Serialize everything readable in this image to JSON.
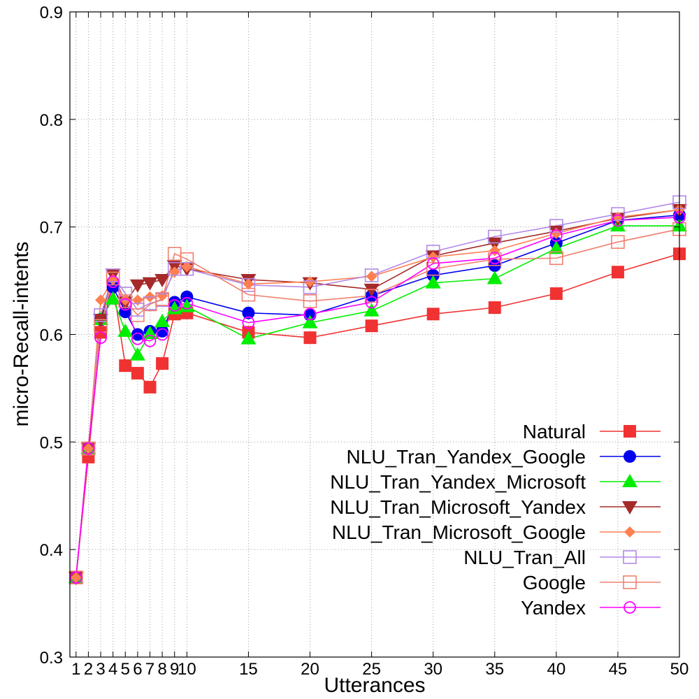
{
  "chart_data": {
    "type": "line",
    "xlabel": "Utterances",
    "ylabel": "micro-Recall-intents",
    "xlim": [
      0.5,
      50
    ],
    "ylim": [
      0.3,
      0.9
    ],
    "x": [
      1,
      2,
      3,
      4,
      5,
      6,
      7,
      8,
      9,
      10,
      15,
      20,
      25,
      30,
      35,
      40,
      45,
      50
    ],
    "x_ticks": [
      1,
      2,
      3,
      4,
      5,
      6,
      7,
      8,
      9,
      10,
      15,
      20,
      25,
      30,
      35,
      40,
      45,
      50
    ],
    "y_ticks": [
      0.3,
      0.4,
      0.5,
      0.6,
      0.7,
      0.8,
      0.9
    ],
    "y_tick_labels": [
      "0.3",
      "0.4",
      "0.5",
      "0.6",
      "0.7",
      "0.8",
      "0.9"
    ],
    "grid": true,
    "legend_position": "bottom-right",
    "series": [
      {
        "name": "Natural",
        "color": "#f03232",
        "marker": "square-filled",
        "values": [
          0.374,
          0.486,
          0.602,
          0.646,
          0.571,
          0.564,
          0.551,
          0.573,
          0.619,
          0.62,
          0.602,
          0.597,
          0.608,
          0.619,
          0.625,
          0.638,
          0.658,
          0.675
        ]
      },
      {
        "name": "NLU_Tran_Yandex_Google",
        "color": "#0000ee",
        "marker": "circle-filled",
        "values": [
          0.374,
          0.494,
          0.614,
          0.644,
          0.621,
          0.6,
          0.603,
          0.603,
          0.63,
          0.635,
          0.62,
          0.618,
          0.636,
          0.655,
          0.664,
          0.685,
          0.706,
          0.711
        ]
      },
      {
        "name": "NLU_Tran_Yandex_Microsoft",
        "color": "#00ee00",
        "marker": "triangle-up-filled",
        "values": [
          0.374,
          0.494,
          0.614,
          0.633,
          0.603,
          0.581,
          0.601,
          0.612,
          0.624,
          0.626,
          0.596,
          0.611,
          0.622,
          0.648,
          0.652,
          0.68,
          0.701,
          0.701
        ]
      },
      {
        "name": "NLU_Tran_Microsoft_Yandex",
        "color": "#a52a2a",
        "marker": "triangle-down-filled",
        "values": [
          0.374,
          0.494,
          0.614,
          0.656,
          0.63,
          0.646,
          0.648,
          0.651,
          0.664,
          0.661,
          0.651,
          0.648,
          0.642,
          0.673,
          0.685,
          0.696,
          0.708,
          0.716
        ]
      },
      {
        "name": "NLU_Tran_Microsoft_Google",
        "color": "#ff7f50",
        "marker": "diamond-filled",
        "values": [
          0.374,
          0.494,
          0.632,
          0.651,
          0.632,
          0.632,
          0.635,
          0.636,
          0.658,
          0.663,
          0.647,
          0.649,
          0.654,
          0.672,
          0.678,
          0.694,
          0.709,
          0.716
        ]
      },
      {
        "name": "NLU_Tran_All",
        "color": "#b28ae8",
        "marker": "square-open",
        "values": [
          0.374,
          0.494,
          0.618,
          0.655,
          0.638,
          0.623,
          0.629,
          0.632,
          0.661,
          0.661,
          0.646,
          0.644,
          0.655,
          0.677,
          0.691,
          0.701,
          0.712,
          0.723
        ]
      },
      {
        "name": "Google",
        "color": "#f08070",
        "marker": "square-open",
        "values": [
          0.374,
          0.494,
          0.608,
          0.652,
          0.631,
          0.618,
          0.628,
          0.633,
          0.675,
          0.67,
          0.637,
          0.631,
          0.636,
          0.661,
          0.67,
          0.671,
          0.686,
          0.698
        ]
      },
      {
        "name": "Yandex",
        "color": "#ff00ff",
        "marker": "circle-open",
        "values": [
          0.374,
          0.494,
          0.597,
          0.649,
          0.628,
          0.596,
          0.594,
          0.6,
          0.627,
          0.629,
          0.611,
          0.619,
          0.63,
          0.666,
          0.671,
          0.692,
          0.706,
          0.709
        ]
      }
    ]
  }
}
